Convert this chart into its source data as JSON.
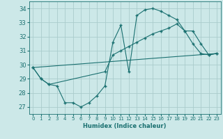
{
  "xlabel": "Humidex (Indice chaleur)",
  "background_color": "#cce8e8",
  "grid_color": "#aacccc",
  "line_color": "#1a7070",
  "xlim": [
    -0.5,
    23.5
  ],
  "ylim": [
    26.5,
    34.5
  ],
  "yticks": [
    27,
    28,
    29,
    30,
    31,
    32,
    33,
    34
  ],
  "xticks": [
    0,
    1,
    2,
    3,
    4,
    5,
    6,
    7,
    8,
    9,
    10,
    11,
    12,
    13,
    14,
    15,
    16,
    17,
    18,
    19,
    20,
    21,
    22,
    23
  ],
  "curve1_x": [
    0,
    1,
    2,
    3,
    4,
    5,
    6,
    7,
    8,
    9,
    10,
    11,
    12,
    13,
    14,
    15,
    16,
    17,
    18,
    19,
    20,
    21,
    22,
    23
  ],
  "curve1_y": [
    29.8,
    29.0,
    28.6,
    28.5,
    27.3,
    27.3,
    27.0,
    27.3,
    27.8,
    28.5,
    31.6,
    32.8,
    29.5,
    33.5,
    33.9,
    34.0,
    33.8,
    33.5,
    33.2,
    32.4,
    31.5,
    30.8,
    30.7,
    30.8
  ],
  "curve2_x": [
    0,
    1,
    2,
    9,
    10,
    11,
    12,
    13,
    14,
    15,
    16,
    17,
    18,
    19,
    20,
    21,
    22,
    23
  ],
  "curve2_y": [
    29.8,
    29.0,
    28.6,
    29.5,
    30.7,
    31.0,
    31.3,
    31.6,
    31.9,
    32.2,
    32.4,
    32.6,
    32.9,
    32.4,
    32.4,
    31.5,
    30.7,
    30.8
  ],
  "curve3_x": [
    0,
    23
  ],
  "curve3_y": [
    29.8,
    30.8
  ]
}
